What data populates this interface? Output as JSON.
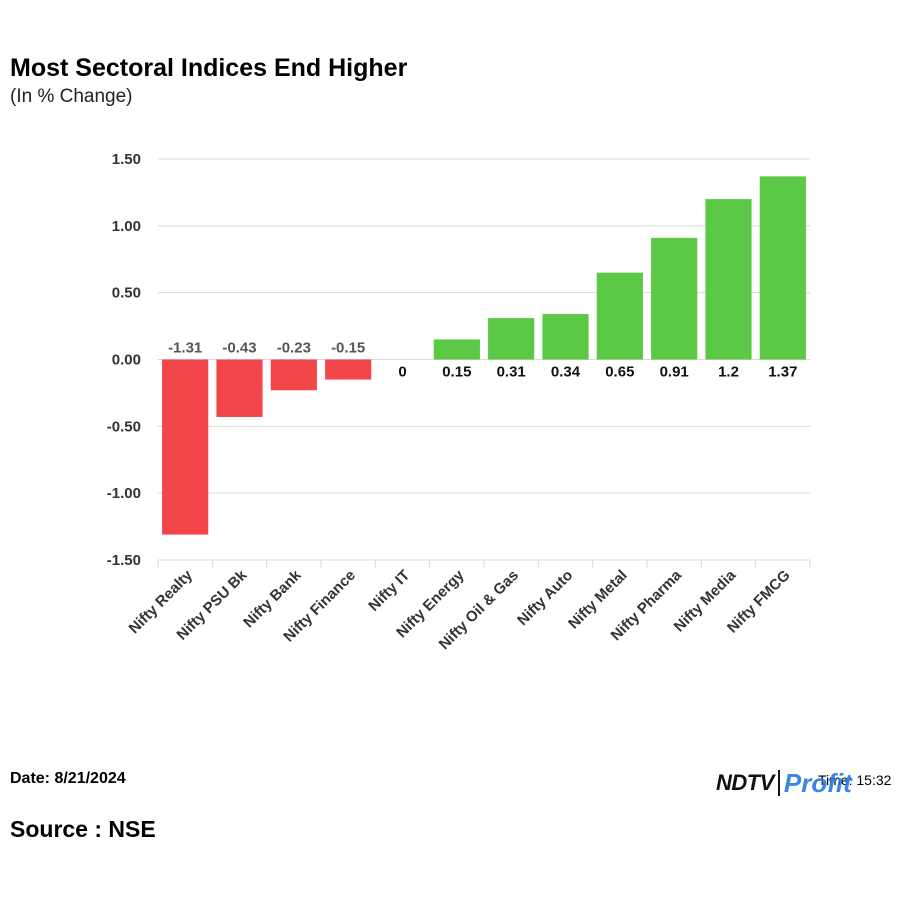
{
  "header": {
    "title": "Most Sectoral Indices End Higher",
    "subtitle": "(In % Change)"
  },
  "footer": {
    "date": "Date: 8/21/2024",
    "source": "Source : NSE",
    "time": "Time: 15:32",
    "logo_ndtv": "NDTV",
    "logo_profit": "Profit"
  },
  "colors": {
    "positive": "#5bc945",
    "negative": "#f2464a",
    "grid": "#d9d9d9",
    "axis_text": "#333333"
  },
  "chart_data": {
    "type": "bar",
    "title": "Most Sectoral Indices End Higher",
    "subtitle": "(In % Change)",
    "xlabel": "",
    "ylabel": "",
    "ylim": [
      -1.5,
      1.5
    ],
    "yticks": [
      1.5,
      1.0,
      0.5,
      0.0,
      -0.5,
      -1.0,
      -1.5
    ],
    "ytick_labels": [
      "1.50",
      "1.00",
      "0.50",
      "0.00",
      "-0.50",
      "-1.00",
      "-1.50"
    ],
    "grid": true,
    "categories": [
      "Nifty Realty",
      "Nifty PSU Bk",
      "Nifty Bank",
      "Nifty Finance",
      "Nifty IT",
      "Nifty Energy",
      "Nifty Oil & Gas",
      "Nifty Auto",
      "Nifty Metal",
      "Nifty Pharma",
      "Nifty Media",
      "Nifty FMCG"
    ],
    "values": [
      -1.31,
      -0.43,
      -0.23,
      -0.15,
      0,
      0.15,
      0.31,
      0.34,
      0.65,
      0.91,
      1.2,
      1.37
    ],
    "data_labels": [
      "-1.31",
      "-0.43",
      "-0.23",
      "-0.15",
      "0",
      "0.15",
      "0.31",
      "0.34",
      "0.65",
      "0.91",
      "1.2",
      "1.37"
    ]
  }
}
